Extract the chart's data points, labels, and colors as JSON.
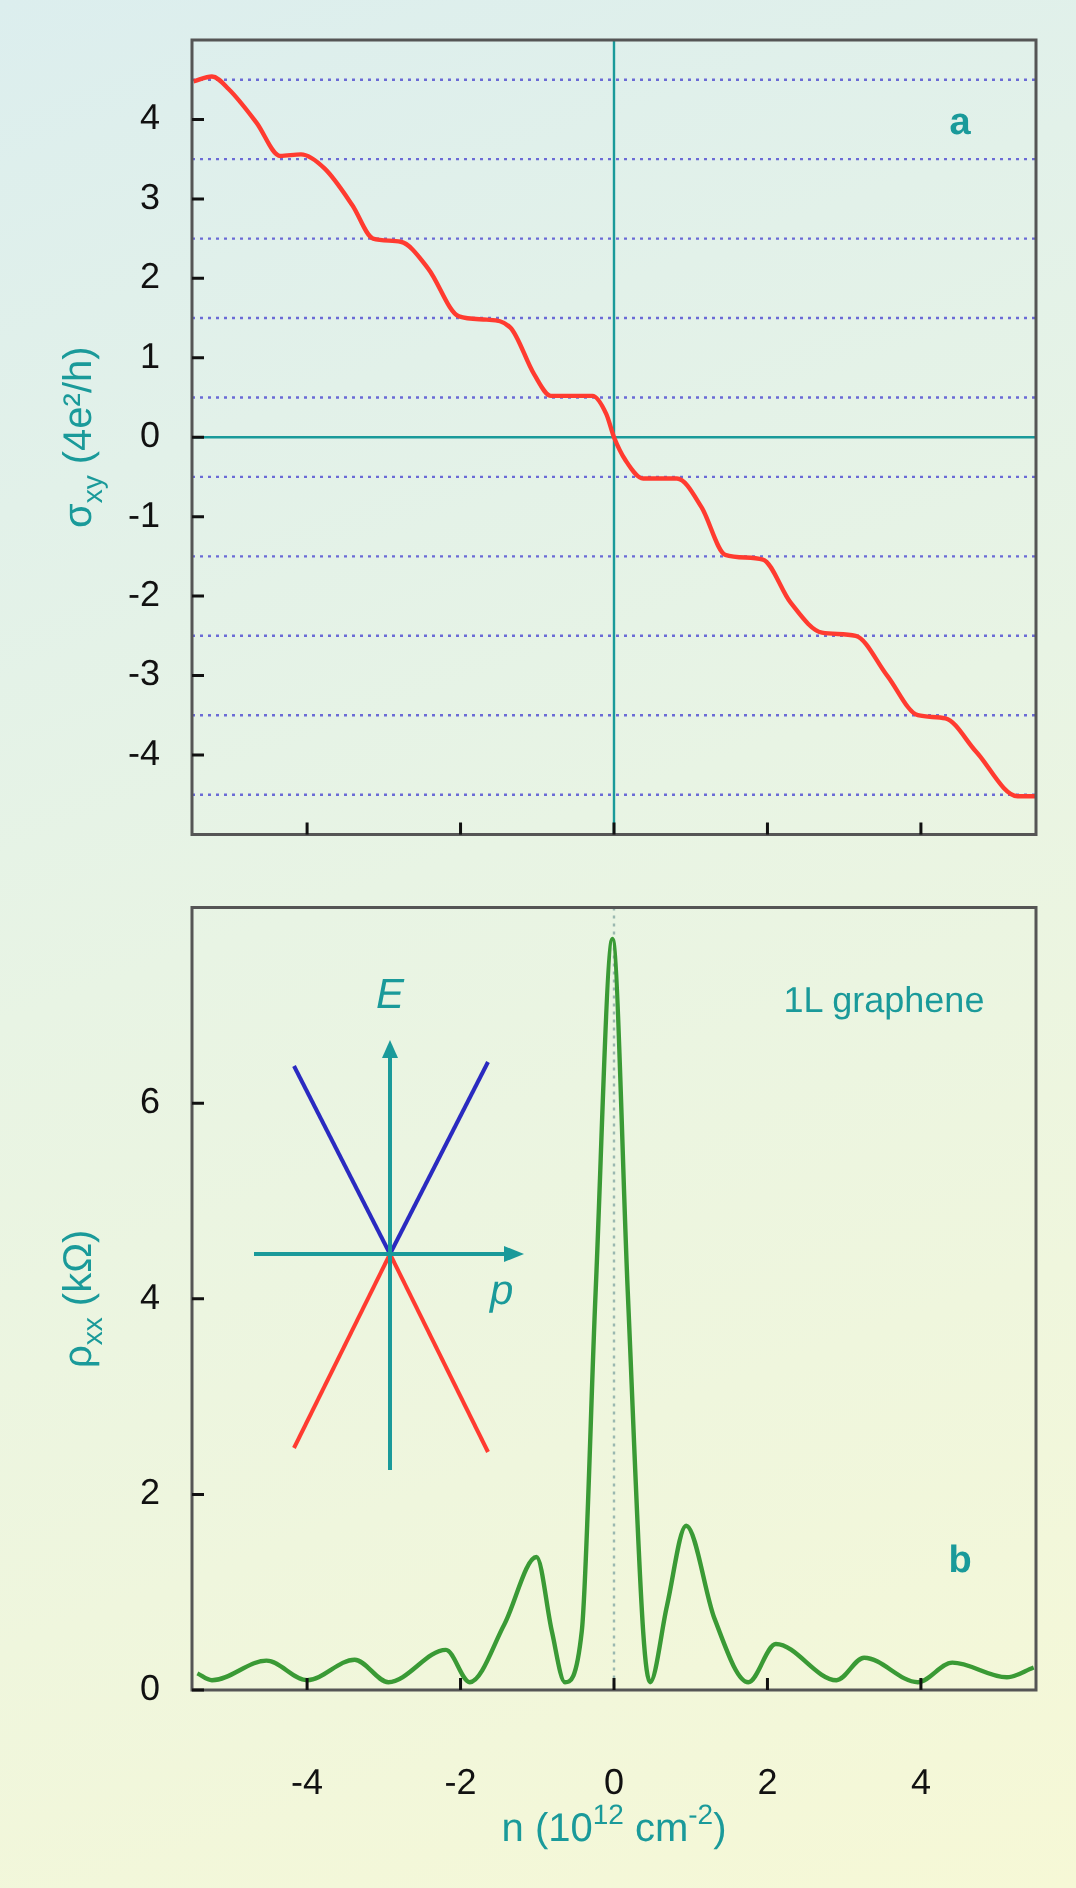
{
  "chart_data": [
    {
      "type": "line",
      "ylabel": "σ$_{xy}$ (4e²/h)",
      "annotations": [
        "a"
      ],
      "tick_labels": "y",
      "marker": "none",
      "line_style": "solid",
      "xlim": [
        -5.5,
        5.5
      ],
      "xticks": [
        {
          "value": -4,
          "label": null
        },
        {
          "value": -2,
          "label": null
        },
        {
          "value": 0,
          "label": null
        },
        {
          "value": 2,
          "label": null
        },
        {
          "value": 4,
          "label": null
        }
      ],
      "ylim": [
        -5,
        5
      ],
      "yticks": [
        -4,
        -3,
        -2,
        -1,
        0,
        1,
        2,
        3,
        4
      ],
      "ref_lines": [
        {
          "axis": "y",
          "value": 4.5,
          "color": "#6b6bd6",
          "line_style": "dotted"
        },
        {
          "axis": "y",
          "value": 3.5,
          "color": "#6b6bd6",
          "line_style": "dotted"
        },
        {
          "axis": "y",
          "value": 2.5,
          "color": "#6b6bd6",
          "line_style": "dotted"
        },
        {
          "axis": "y",
          "value": 1.5,
          "color": "#6b6bd6",
          "line_style": "dotted"
        },
        {
          "axis": "y",
          "value": 0.5,
          "color": "#6b6bd6",
          "line_style": "dotted"
        },
        {
          "axis": "y",
          "value": -0.5,
          "color": "#6b6bd6",
          "line_style": "dotted"
        },
        {
          "axis": "y",
          "value": -1.5,
          "color": "#6b6bd6",
          "line_style": "dotted"
        },
        {
          "axis": "y",
          "value": -2.5,
          "color": "#6b6bd6",
          "line_style": "dotted"
        },
        {
          "axis": "y",
          "value": -3.5,
          "color": "#6b6bd6",
          "line_style": "dotted"
        },
        {
          "axis": "y",
          "value": -4.5,
          "color": "#6b6bd6",
          "line_style": "dotted"
        },
        {
          "axis": "y",
          "value": 0,
          "color": "#1a9a9a",
          "line_style": "solid"
        },
        {
          "axis": "x",
          "value": 0,
          "color": "#1a9a9a",
          "line_style": "solid"
        }
      ],
      "series": [
        {
          "color": "#ff3b30",
          "x": [
            -5.48,
            -5.24,
            -5.02,
            -4.66,
            -4.35,
            -4.08,
            -3.77,
            -3.41,
            -3.14,
            -2.78,
            -2.42,
            -2.02,
            -1.66,
            -1.35,
            -1.04,
            -0.82,
            -0.28,
            -0.1,
            0,
            0.15,
            0.38,
            0.82,
            1.14,
            1.45,
            1.94,
            2.3,
            2.71,
            3.15,
            3.56,
            3.96,
            4.32,
            4.72,
            5.26,
            5.5
          ],
          "values": [
            4.48,
            4.54,
            4.38,
            3.96,
            3.54,
            3.56,
            3.38,
            2.92,
            2.5,
            2.46,
            2.12,
            1.52,
            1.48,
            1.38,
            0.79,
            0.52,
            0.52,
            0.29,
            0,
            -0.29,
            -0.52,
            -0.52,
            -0.88,
            -1.48,
            -1.54,
            -2.08,
            -2.46,
            -2.5,
            -3.0,
            -3.5,
            -3.54,
            -3.96,
            -4.52,
            -4.52
          ]
        }
      ]
    },
    {
      "type": "line",
      "ylabel": "ρ$_{xx}$ (kΩ)",
      "xlabel": "n (10$^{12}$ cm$^{-2}$)",
      "annotations": [
        "1L graphene",
        "b",
        "E",
        "p"
      ],
      "marker": "none",
      "line_style": "solid",
      "xlim": [
        -5.5,
        5.5
      ],
      "xticks": [
        -4,
        -2,
        0,
        2,
        4
      ],
      "ylim": [
        0,
        8
      ],
      "yticks": [
        0,
        2,
        4,
        6
      ],
      "ref_lines": [
        {
          "axis": "x",
          "value": 0,
          "color": "#9ab8b0",
          "line_style": "dotted"
        }
      ],
      "series": [
        {
          "color": "#3a9a35",
          "x": [
            -5.43,
            -5.24,
            -4.53,
            -4.0,
            -3.38,
            -2.94,
            -2.19,
            -1.88,
            -1.43,
            -1.01,
            -0.81,
            -0.64,
            -0.42,
            -0.24,
            -0.02,
            0.18,
            0.38,
            0.47,
            0.69,
            0.94,
            1.31,
            1.75,
            2.11,
            2.9,
            3.26,
            3.96,
            4.41,
            5.12,
            5.47
          ],
          "values": [
            0.17,
            0.1,
            0.3,
            0.1,
            0.31,
            0.08,
            0.41,
            0.08,
            0.67,
            1.36,
            0.6,
            0.08,
            0.6,
            4.06,
            7.68,
            4.06,
            0.6,
            0.08,
            0.86,
            1.68,
            0.73,
            0.08,
            0.47,
            0.1,
            0.33,
            0.08,
            0.28,
            0.13,
            0.23
          ]
        }
      ]
    }
  ]
}
